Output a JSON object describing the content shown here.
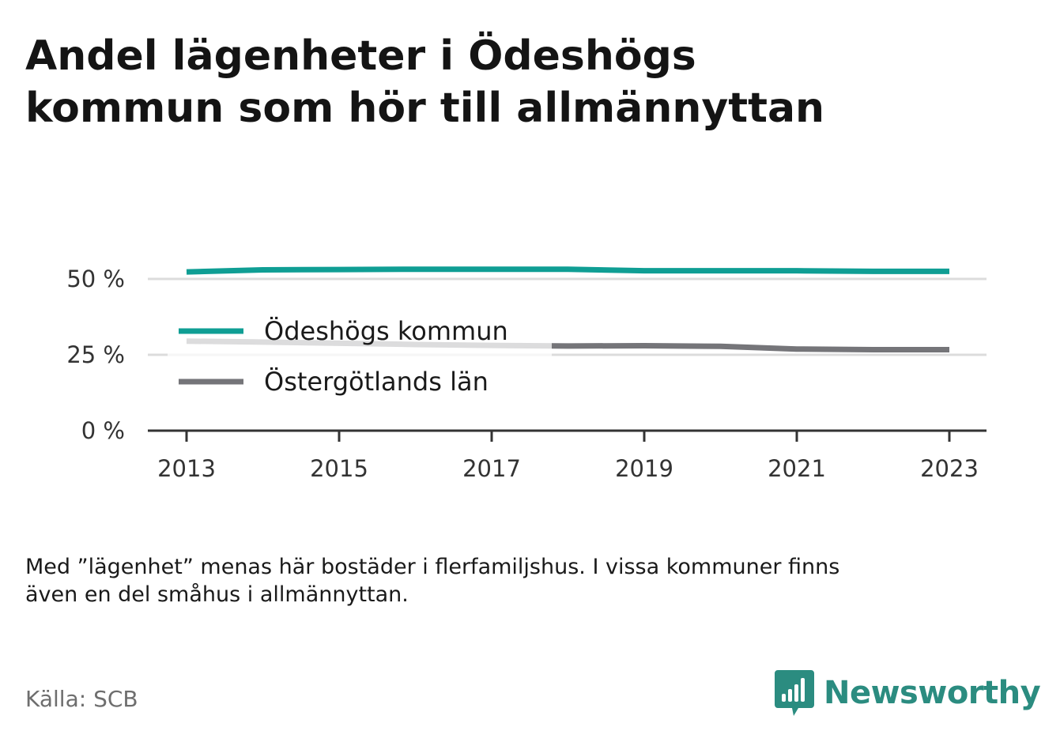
{
  "title_lines": [
    "Andel lägenheter i Ödeshögs",
    "kommun som hör till allmännyttan"
  ],
  "note_lines": [
    "Med ”lägenhet” menas här bostäder i flerfamiljshus. I vissa kommuner finns",
    "även en del småhus i allmännyttan."
  ],
  "source": "Källa: SCB",
  "brand": {
    "name": "Newsworthy",
    "icon": "bar-chart-logo-icon",
    "color": "#2b8c80"
  },
  "chart_data": {
    "type": "line",
    "x": [
      2013,
      2014,
      2015,
      2016,
      2017,
      2018,
      2019,
      2020,
      2021,
      2022,
      2023
    ],
    "x_ticks": [
      "2013",
      "2015",
      "2017",
      "2019",
      "2021",
      "2023"
    ],
    "y_ticks": [
      "0 %",
      "25 %",
      "50 %"
    ],
    "ylim": [
      0,
      50
    ],
    "grid": true,
    "legend_position": "inside-left",
    "series": [
      {
        "name": "Ödeshögs kommun",
        "color": "#0f9e94",
        "values": [
          52.3,
          53.0,
          53.1,
          53.2,
          53.2,
          53.2,
          52.7,
          52.7,
          52.7,
          52.5,
          52.5
        ]
      },
      {
        "name": "Östergötlands län",
        "color": "#757579",
        "values": [
          29.5,
          29.2,
          28.8,
          28.4,
          28.1,
          27.9,
          28.0,
          27.8,
          26.9,
          26.7,
          26.7
        ]
      }
    ]
  }
}
